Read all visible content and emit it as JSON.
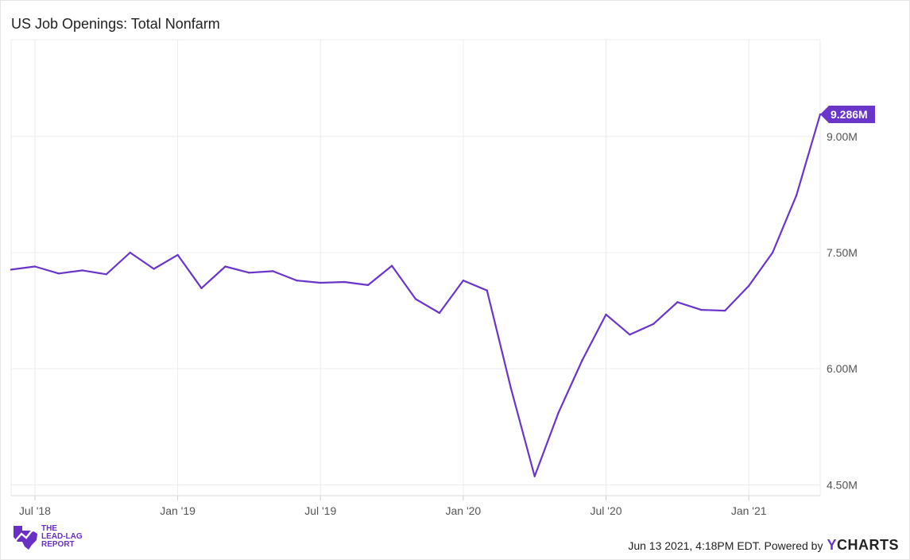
{
  "title": "US Job Openings: Total Nonfarm",
  "footer": {
    "timestamp": "Jun 13 2021, 4:18PM EDT. Powered by",
    "brand_y": "Y",
    "brand_rest": "CHARTS"
  },
  "logo": {
    "line1": "THE",
    "line2": "LEAD-LAG",
    "line3": "REPORT"
  },
  "colors": {
    "line": "#6a35c9",
    "grid": "#ececec",
    "label_bg": "#6a35c9"
  },
  "chart_data": {
    "type": "line",
    "series": [
      {
        "x": [
          "2018-06",
          "2018-07",
          "2018-08",
          "2018-09",
          "2018-10",
          "2018-11",
          "2018-12",
          "2019-01",
          "2019-02",
          "2019-03",
          "2019-04",
          "2019-05",
          "2019-06",
          "2019-07",
          "2019-08",
          "2019-09",
          "2019-10",
          "2019-11",
          "2019-12",
          "2020-01",
          "2020-02",
          "2020-03",
          "2020-04",
          "2020-05",
          "2020-06",
          "2020-07",
          "2020-08",
          "2020-09",
          "2020-10",
          "2020-11",
          "2020-12",
          "2021-01",
          "2021-02",
          "2021-03",
          "2021-04"
        ],
        "values": [
          7.28,
          7.32,
          7.23,
          7.27,
          7.22,
          7.5,
          7.29,
          7.47,
          7.04,
          7.32,
          7.24,
          7.26,
          7.14,
          7.11,
          7.12,
          7.08,
          7.33,
          6.9,
          6.72,
          7.14,
          7.01,
          5.75,
          4.61,
          5.43,
          6.11,
          6.7,
          6.44,
          6.58,
          6.86,
          6.76,
          6.75,
          7.07,
          7.5,
          8.24,
          9.286
        ]
      }
    ],
    "last_value_label": "9.286M",
    "y_ticks": [
      {
        "value": 4.5,
        "label": "4.50M"
      },
      {
        "value": 6.0,
        "label": "6.00M"
      },
      {
        "value": 7.5,
        "label": "7.50M"
      },
      {
        "value": 9.0,
        "label": "9.00M"
      }
    ],
    "x_ticks": [
      {
        "date": "2018-07",
        "label": "Jul '18"
      },
      {
        "date": "2019-01",
        "label": "Jan '19"
      },
      {
        "date": "2019-07",
        "label": "Jul '19"
      },
      {
        "date": "2020-01",
        "label": "Jan '20"
      },
      {
        "date": "2020-07",
        "label": "Jul '20"
      },
      {
        "date": "2021-01",
        "label": "Jan '21"
      }
    ],
    "ylim": [
      4.36,
      10.25
    ],
    "xlim": [
      "2018-06",
      "2021-04"
    ],
    "grid": true
  }
}
